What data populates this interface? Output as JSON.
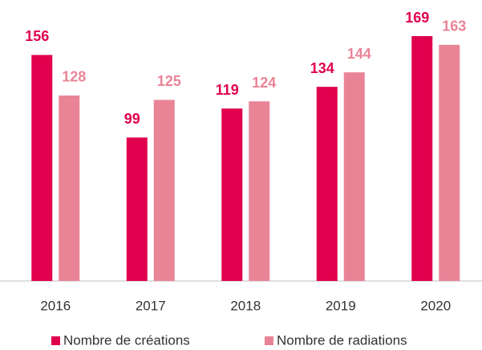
{
  "chart_data": {
    "type": "bar",
    "categories": [
      "2016",
      "2017",
      "2018",
      "2019",
      "2020"
    ],
    "series": [
      {
        "name": "Nombre de créations",
        "color": "#e0004d",
        "values": [
          156,
          99,
          119,
          134,
          169
        ]
      },
      {
        "name": "Nombre de radiations",
        "color": "#e98497",
        "values": [
          128,
          125,
          124,
          144,
          163
        ]
      }
    ]
  }
}
